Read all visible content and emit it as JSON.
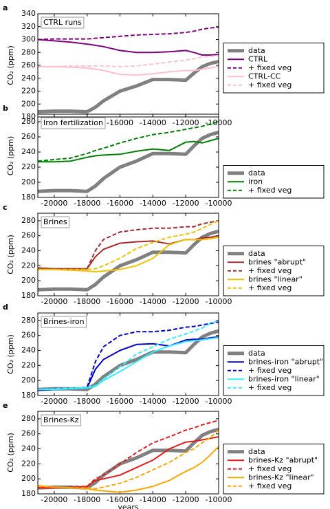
{
  "chart_data": [
    {
      "type": "line",
      "panel": "a",
      "title": "CTRL runs",
      "y_label": "CO₂ (ppm)",
      "x": [
        -21000,
        -20000,
        -19000,
        -18000,
        -17500,
        -17000,
        -16000,
        -15000,
        -14000,
        -13000,
        -12000,
        -11500,
        -11000,
        -10500,
        -10000
      ],
      "xlim": [
        -21000,
        -10000
      ],
      "xticks": [
        -20000,
        -18000,
        -16000,
        -14000,
        -12000,
        -10000
      ],
      "ylim": [
        180,
        340
      ],
      "yticks": [
        180,
        200,
        220,
        240,
        260,
        280,
        300,
        320,
        340
      ],
      "legend": "right",
      "series": [
        {
          "name": "data",
          "color": "#808080",
          "linestyle": "solid",
          "values": [
            188,
            189,
            189,
            188,
            195,
            205,
            220,
            228,
            238,
            238,
            237,
            248,
            258,
            263,
            266
          ]
        },
        {
          "name": "CTRL",
          "color": "#800080",
          "linestyle": "solid",
          "values": [
            300,
            298,
            296,
            293,
            291,
            289,
            283,
            280,
            280,
            281,
            283,
            280,
            276,
            276,
            277
          ]
        },
        {
          "name": "+ fixed veg",
          "color": "#800080",
          "linestyle": "dashed",
          "values": [
            300,
            301,
            301,
            301,
            302,
            303,
            305,
            307,
            308,
            309,
            311,
            313,
            316,
            318,
            319
          ]
        },
        {
          "name": "CTRL-CC",
          "color": "#ffc0cb",
          "linestyle": "solid",
          "values": [
            258,
            258,
            257,
            256,
            254,
            252,
            246,
            245,
            247,
            250,
            252,
            252,
            254,
            256,
            258
          ]
        },
        {
          "name": "+ fixed veg",
          "color": "#ffc0cb",
          "linestyle": "dashed",
          "values": [
            258,
            258,
            259,
            259,
            259,
            259,
            258,
            259,
            262,
            265,
            268,
            270,
            273,
            274,
            275
          ]
        }
      ]
    },
    {
      "type": "line",
      "panel": "b",
      "title": "Iron fertilization",
      "y_label": "CO₂ (ppm)",
      "x": [
        -21000,
        -20000,
        -19000,
        -18000,
        -17500,
        -17000,
        -16000,
        -15000,
        -14000,
        -13000,
        -12000,
        -11500,
        -11000,
        -10500,
        -10000
      ],
      "xlim": [
        -21000,
        -10000
      ],
      "xticks": [
        -20000,
        -18000,
        -16000,
        -14000,
        -12000,
        -10000
      ],
      "ylim": [
        180,
        290
      ],
      "yticks": [
        180,
        200,
        220,
        240,
        260,
        280
      ],
      "legend": "right",
      "series": [
        {
          "name": "data",
          "color": "#808080",
          "linestyle": "solid",
          "values": [
            188,
            189,
            189,
            188,
            195,
            205,
            220,
            228,
            238,
            238,
            237,
            248,
            258,
            263,
            266
          ]
        },
        {
          "name": "iron",
          "color": "#008000",
          "linestyle": "solid",
          "values": [
            227,
            227,
            228,
            233,
            235,
            236,
            237,
            241,
            244,
            242,
            253,
            254,
            252,
            255,
            258
          ]
        },
        {
          "name": "+ fixed veg",
          "color": "#008000",
          "linestyle": "dashed",
          "values": [
            228,
            230,
            232,
            238,
            242,
            245,
            252,
            258,
            263,
            266,
            270,
            272,
            274,
            277,
            280
          ]
        }
      ]
    },
    {
      "type": "line",
      "panel": "c",
      "title": "Brines",
      "y_label": "CO₂ (ppm)",
      "x": [
        -21000,
        -20000,
        -19000,
        -18000,
        -17500,
        -17000,
        -16000,
        -15000,
        -14000,
        -13000,
        -12000,
        -11500,
        -11000,
        -10500,
        -10000
      ],
      "xlim": [
        -21000,
        -10000
      ],
      "xticks": [
        -20000,
        -18000,
        -16000,
        -14000,
        -12000,
        -10000
      ],
      "ylim": [
        180,
        290
      ],
      "yticks": [
        180,
        200,
        220,
        240,
        260,
        280
      ],
      "legend": "right",
      "series": [
        {
          "name": "data",
          "color": "#808080",
          "linestyle": "solid",
          "values": [
            188,
            189,
            189,
            188,
            195,
            205,
            220,
            228,
            238,
            238,
            237,
            248,
            258,
            263,
            266
          ]
        },
        {
          "name": "brines \"abrupt\"",
          "color": "#a52a2a",
          "linestyle": "solid",
          "values": [
            217,
            216,
            216,
            216,
            232,
            242,
            250,
            252,
            253,
            249,
            255,
            255,
            257,
            258,
            260
          ]
        },
        {
          "name": "+ fixed veg",
          "color": "#a52a2a",
          "linestyle": "dashed",
          "values": [
            217,
            216,
            216,
            216,
            240,
            255,
            265,
            268,
            270,
            270,
            272,
            272,
            276,
            278,
            280
          ]
        },
        {
          "name": "brines \"linear\"",
          "color": "#f2c000",
          "linestyle": "solid",
          "values": [
            215,
            215,
            214,
            213,
            212,
            213,
            215,
            220,
            230,
            248,
            255,
            255,
            255,
            256,
            258
          ]
        },
        {
          "name": "+ fixed veg",
          "color": "#f2c000",
          "linestyle": "dashed",
          "values": [
            215,
            215,
            215,
            215,
            216,
            220,
            230,
            243,
            251,
            258,
            262,
            265,
            270,
            275,
            280
          ]
        }
      ]
    },
    {
      "type": "line",
      "panel": "d",
      "title": "Brines-iron",
      "y_label": "CO₂ (ppm)",
      "x": [
        -21000,
        -20000,
        -19000,
        -18000,
        -17500,
        -17000,
        -16000,
        -15000,
        -14000,
        -13000,
        -12000,
        -11500,
        -11000,
        -10500,
        -10000
      ],
      "xlim": [
        -21000,
        -10000
      ],
      "xticks": [
        -20000,
        -18000,
        -16000,
        -14000,
        -12000,
        -10000
      ],
      "ylim": [
        180,
        290
      ],
      "yticks": [
        180,
        200,
        220,
        240,
        260,
        280
      ],
      "legend": "right",
      "series": [
        {
          "name": "data",
          "color": "#808080",
          "linestyle": "solid",
          "values": [
            188,
            189,
            189,
            188,
            195,
            205,
            220,
            228,
            238,
            238,
            237,
            248,
            258,
            263,
            266
          ]
        },
        {
          "name": "brines-iron \"abrupt\"",
          "color": "#0000cd",
          "linestyle": "solid",
          "values": [
            187,
            188,
            189,
            190,
            215,
            228,
            240,
            248,
            249,
            246,
            254,
            255,
            255,
            257,
            258
          ]
        },
        {
          "name": "+ fixed veg",
          "color": "#0000cd",
          "linestyle": "dashed",
          "values": [
            187,
            189,
            190,
            191,
            225,
            245,
            260,
            265,
            265,
            267,
            271,
            272,
            274,
            276,
            278
          ]
        },
        {
          "name": "brines-iron \"linear\"",
          "color": "#33eeff",
          "linestyle": "solid",
          "values": [
            188,
            188,
            189,
            190,
            192,
            200,
            212,
            225,
            238,
            246,
            252,
            253,
            254,
            256,
            257
          ]
        },
        {
          "name": "+ fixed veg",
          "color": "#33eeff",
          "linestyle": "dashed",
          "values": [
            188,
            189,
            190,
            191,
            193,
            202,
            218,
            235,
            245,
            255,
            262,
            266,
            270,
            276,
            280
          ]
        }
      ]
    },
    {
      "type": "line",
      "panel": "e",
      "title": "Brines-Kz",
      "y_label": "CO₂ (ppm)",
      "x_label": "years",
      "x": [
        -21000,
        -20000,
        -19000,
        -18000,
        -17500,
        -17000,
        -16000,
        -15000,
        -14000,
        -13000,
        -12000,
        -11500,
        -11000,
        -10500,
        -10000
      ],
      "xlim": [
        -21000,
        -10000
      ],
      "xticks": [
        -20000,
        -18000,
        -16000,
        -14000,
        -12000,
        -10000
      ],
      "ylim": [
        180,
        290
      ],
      "yticks": [
        180,
        200,
        220,
        240,
        260,
        280
      ],
      "legend": "right",
      "series": [
        {
          "name": "data",
          "color": "#808080",
          "linestyle": "solid",
          "values": [
            188,
            189,
            189,
            188,
            195,
            205,
            220,
            228,
            238,
            238,
            237,
            248,
            258,
            263,
            266
          ]
        },
        {
          "name": "brines-Kz \"abrupt\"",
          "color": "#e41a1c",
          "linestyle": "solid",
          "values": [
            188,
            188,
            188,
            190,
            198,
            200,
            205,
            215,
            225,
            240,
            249,
            250,
            252,
            254,
            256
          ]
        },
        {
          "name": "+ fixed veg",
          "color": "#e41a1c",
          "linestyle": "dashed",
          "values": [
            188,
            188,
            189,
            190,
            200,
            205,
            220,
            235,
            248,
            256,
            265,
            268,
            272,
            275,
            278
          ]
        },
        {
          "name": "brines-Kz \"linear\"",
          "color": "#ffa500",
          "linestyle": "solid",
          "values": [
            191,
            189,
            188,
            187,
            185,
            184,
            182,
            185,
            190,
            198,
            210,
            215,
            222,
            232,
            243
          ]
        },
        {
          "name": "+ fixed veg",
          "color": "#ffa500",
          "linestyle": "dashed",
          "values": [
            190,
            189,
            188,
            188,
            187,
            189,
            194,
            202,
            212,
            222,
            235,
            240,
            248,
            255,
            265
          ]
        }
      ]
    }
  ]
}
